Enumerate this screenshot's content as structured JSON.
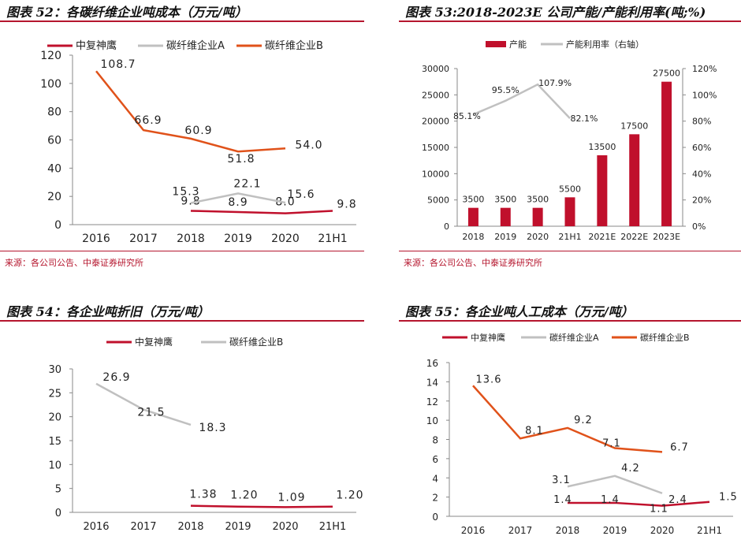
{
  "panels": [
    {
      "title": "图表 52：各碳纤维企业吨成本（万元/吨）",
      "source": "来源：各公司公告、中泰证券研究所"
    },
    {
      "title": "图表 53:2018-2023E 公司产能/产能利用率(吨;%)",
      "source": "来源：各公司公告、中泰证券研究所"
    },
    {
      "title": "图表 54：各企业吨折旧（万元/吨）",
      "source": ""
    },
    {
      "title": "图表 55：各企业吨人工成本（万元/吨）",
      "source": ""
    }
  ],
  "chart_data": [
    {
      "type": "line",
      "title": "图表 52：各碳纤维企业吨成本（万元/吨）",
      "categories": [
        "2016",
        "2017",
        "2018",
        "2019",
        "2020",
        "21H1"
      ],
      "ylim": [
        0,
        120
      ],
      "yticks": [
        0,
        20,
        40,
        60,
        80,
        100,
        120
      ],
      "series": [
        {
          "name": "中复神鹰",
          "color": "#c0102c",
          "values": [
            null,
            null,
            9.8,
            8.9,
            8.0,
            9.8
          ],
          "labels": [
            "",
            "",
            "9.8",
            "8.9",
            "8.0",
            "9.8"
          ]
        },
        {
          "name": "碳纤维企业A",
          "color": "#c0c0c0",
          "values": [
            null,
            null,
            15.3,
            22.1,
            15.6,
            null
          ],
          "labels": [
            "",
            "",
            "15.3",
            "22.1",
            "15.6",
            ""
          ]
        },
        {
          "name": "碳纤维企业B",
          "color": "#e0521a",
          "values": [
            108.7,
            66.9,
            60.9,
            51.8,
            54.0,
            null
          ],
          "labels": [
            "108.7",
            "66.9",
            "60.9",
            "51.8",
            "54.0",
            ""
          ]
        }
      ],
      "legend": "top"
    },
    {
      "type": "bar",
      "title": "图表 53:2018-2023E 公司产能/产能利用率(吨;%)",
      "categories": [
        "2018",
        "2019",
        "2020",
        "21H1",
        "2021E",
        "2022E",
        "2023E"
      ],
      "ylim": [
        0,
        30000
      ],
      "yticks": [
        0,
        5000,
        10000,
        15000,
        20000,
        25000,
        30000
      ],
      "y2lim": [
        0,
        120
      ],
      "y2ticks": [
        "0%",
        "20%",
        "40%",
        "60%",
        "80%",
        "100%",
        "120%"
      ],
      "series": [
        {
          "name": "产能",
          "color": "#c0102c",
          "axis": "left",
          "values": [
            3500,
            3500,
            3500,
            5500,
            13500,
            17500,
            27500
          ],
          "labels": [
            "3500",
            "3500",
            "3500",
            "5500",
            "13500",
            "17500",
            "27500"
          ]
        },
        {
          "name": "产能利用率（右轴）",
          "color": "#c0c0c0",
          "axis": "right",
          "values": [
            85.1,
            95.5,
            107.9,
            82.1,
            null,
            null,
            null
          ],
          "labels": [
            "85.1%",
            "95.5%",
            "107.9%",
            "82.1%",
            "",
            "",
            ""
          ]
        }
      ],
      "legend": "top"
    },
    {
      "type": "line",
      "title": "图表 54：各企业吨折旧（万元/吨）",
      "categories": [
        "2016",
        "2017",
        "2018",
        "2019",
        "2020",
        "21H1"
      ],
      "ylim": [
        0,
        30
      ],
      "yticks": [
        0,
        5,
        10,
        15,
        20,
        25,
        30
      ],
      "series": [
        {
          "name": "中复神鹰",
          "color": "#c0102c",
          "values": [
            null,
            null,
            1.38,
            1.2,
            1.09,
            1.2
          ],
          "labels": [
            "",
            "",
            "1.38",
            "1.20",
            "1.09",
            "1.20"
          ]
        },
        {
          "name": "碳纤维企业B",
          "color": "#c0c0c0",
          "values": [
            26.9,
            21.5,
            18.3,
            null,
            null,
            null
          ],
          "labels": [
            "26.9",
            "21.5",
            "18.3",
            "",
            "",
            ""
          ]
        }
      ],
      "legend": "top"
    },
    {
      "type": "line",
      "title": "图表 55：各企业吨人工成本（万元/吨）",
      "categories": [
        "2016",
        "2017",
        "2018",
        "2019",
        "2020",
        "21H1"
      ],
      "ylim": [
        0,
        16
      ],
      "yticks": [
        0,
        2,
        4,
        6,
        8,
        10,
        12,
        14,
        16
      ],
      "series": [
        {
          "name": "中复神鹰",
          "color": "#c0102c",
          "values": [
            null,
            null,
            1.4,
            1.4,
            1.1,
            1.5
          ],
          "labels": [
            "",
            "",
            "1.4",
            "1.4",
            "1.1",
            "1.5"
          ]
        },
        {
          "name": "碳纤维企业A",
          "color": "#c0c0c0",
          "values": [
            null,
            null,
            3.1,
            4.2,
            2.4,
            null
          ],
          "labels": [
            "",
            "",
            "3.1",
            "4.2",
            "2.4",
            ""
          ]
        },
        {
          "name": "碳纤维企业B",
          "color": "#e0521a",
          "values": [
            13.6,
            8.1,
            9.2,
            7.1,
            6.7,
            null
          ],
          "labels": [
            "13.6",
            "8.1",
            "9.2",
            "7.1",
            "6.7",
            ""
          ]
        }
      ],
      "legend": "top"
    }
  ]
}
